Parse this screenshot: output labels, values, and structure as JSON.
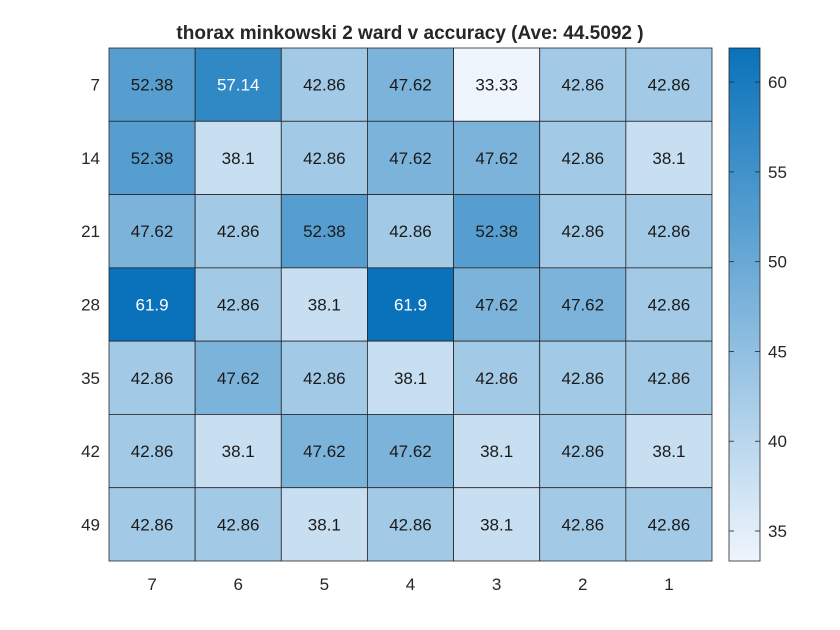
{
  "chart_data": {
    "type": "heatmap",
    "title": "thorax minkowski 2 ward v accuracy (Ave:  44.5092 )",
    "x_categories": [
      "7",
      "6",
      "5",
      "4",
      "3",
      "2",
      "1"
    ],
    "y_categories": [
      "7",
      "14",
      "21",
      "28",
      "35",
      "42",
      "49"
    ],
    "values": [
      [
        52.38,
        57.14,
        42.86,
        47.62,
        33.33,
        42.86,
        42.86
      ],
      [
        52.38,
        38.1,
        42.86,
        47.62,
        47.62,
        42.86,
        38.1
      ],
      [
        47.62,
        42.86,
        52.38,
        42.86,
        52.38,
        42.86,
        42.86
      ],
      [
        61.9,
        42.86,
        38.1,
        61.9,
        47.62,
        47.62,
        42.86
      ],
      [
        42.86,
        47.62,
        42.86,
        38.1,
        42.86,
        42.86,
        42.86
      ],
      [
        42.86,
        38.1,
        47.62,
        47.62,
        38.1,
        42.86,
        38.1
      ],
      [
        42.86,
        42.86,
        38.1,
        42.86,
        38.1,
        42.86,
        42.86
      ]
    ],
    "colorbar": {
      "range": [
        33.33,
        61.9
      ],
      "ticks": [
        35,
        40,
        45,
        50,
        55,
        60
      ],
      "color_low": "#eef5fc",
      "color_high": "#0a72ba"
    },
    "grid": true,
    "legend": "colorbar-right"
  }
}
